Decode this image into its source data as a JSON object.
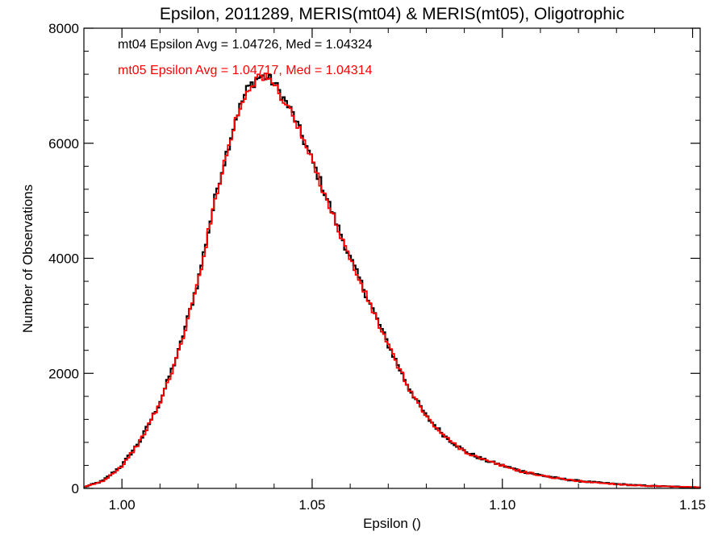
{
  "chart_data": {
    "type": "line",
    "title": "Epsilon, 2011289, MERIS(mt04) & MERIS(mt05), Oligotrophic",
    "xlabel": "Epsilon ()",
    "ylabel": "Number of Observations",
    "xlim": [
      0.99,
      1.152
    ],
    "ylim": [
      0,
      8000
    ],
    "x_ticks": [
      {
        "value": 1.0,
        "label": "1.00"
      },
      {
        "value": 1.05,
        "label": "1.05"
      },
      {
        "value": 1.1,
        "label": "1.10"
      },
      {
        "value": 1.15,
        "label": "1.15"
      }
    ],
    "y_ticks": [
      {
        "value": 0,
        "label": "0"
      },
      {
        "value": 2000,
        "label": "2000"
      },
      {
        "value": 4000,
        "label": "4000"
      },
      {
        "value": 6000,
        "label": "6000"
      },
      {
        "value": 8000,
        "label": "8000"
      }
    ],
    "grid": false,
    "step": true,
    "annotations": [
      {
        "text": "mt04 Epsilon Avg = 1.04726, Med = 1.04324",
        "color": "#000000"
      },
      {
        "text": "mt05 Epsilon Avg = 1.04717, Med = 1.04314",
        "color": "#ff0000"
      }
    ],
    "series": [
      {
        "color": "#000000",
        "x": [
          0.99,
          0.995,
          1.0,
          1.005,
          1.01,
          1.015,
          1.02,
          1.025,
          1.03,
          1.033,
          1.036,
          1.038,
          1.04,
          1.045,
          1.05,
          1.055,
          1.06,
          1.065,
          1.07,
          1.075,
          1.08,
          1.085,
          1.09,
          1.095,
          1.1,
          1.105,
          1.11,
          1.115,
          1.12,
          1.125,
          1.13,
          1.135,
          1.14,
          1.145,
          1.152
        ],
        "y": [
          20,
          130,
          400,
          850,
          1500,
          2400,
          3600,
          5200,
          6450,
          6950,
          7150,
          7150,
          7050,
          6500,
          5700,
          4850,
          4000,
          3250,
          2500,
          1800,
          1250,
          900,
          650,
          500,
          400,
          300,
          230,
          170,
          130,
          100,
          75,
          55,
          40,
          30,
          20
        ]
      },
      {
        "color": "#ff0000",
        "x": [
          0.99,
          0.995,
          1.0,
          1.005,
          1.01,
          1.015,
          1.02,
          1.025,
          1.03,
          1.033,
          1.036,
          1.038,
          1.04,
          1.045,
          1.05,
          1.055,
          1.06,
          1.065,
          1.07,
          1.075,
          1.08,
          1.085,
          1.09,
          1.095,
          1.1,
          1.105,
          1.11,
          1.115,
          1.12,
          1.125,
          1.13,
          1.135,
          1.14,
          1.145,
          1.152
        ],
        "y": [
          20,
          125,
          390,
          840,
          1480,
          2380,
          3580,
          5180,
          6430,
          6930,
          7180,
          7120,
          7030,
          6480,
          5680,
          4830,
          3980,
          3230,
          2480,
          1790,
          1240,
          890,
          645,
          495,
          395,
          295,
          228,
          168,
          128,
          98,
          73,
          54,
          39,
          29,
          19
        ]
      }
    ]
  }
}
